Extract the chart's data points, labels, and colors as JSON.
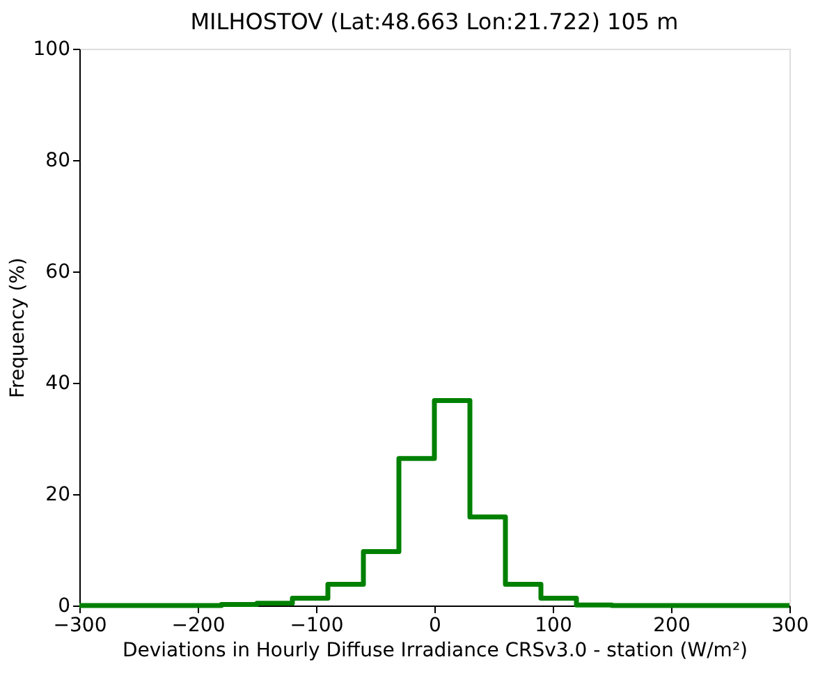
{
  "chart_data": {
    "type": "histogram",
    "title": "MILHOSTOV (Lat:48.663 Lon:21.722) 105 m",
    "xlabel": "Deviations in Hourly Diffuse Irradiance CRSv3.0 - station (W/m²)",
    "ylabel": "Frequency (%)",
    "bins": [
      -300,
      -270,
      -240,
      -210,
      -180,
      -150,
      -120,
      -90,
      -60,
      -30,
      0,
      30,
      60,
      90,
      120,
      150,
      180,
      210,
      240,
      270,
      300
    ],
    "values": [
      0,
      0,
      0,
      0,
      0.2,
      0.4,
      1.3,
      3.8,
      9.7,
      26.4,
      36.8,
      15.9,
      3.8,
      1.3,
      0.1,
      0,
      0,
      0,
      0,
      0
    ],
    "color": "#008000",
    "xlim": [
      -300,
      300
    ],
    "ylim": [
      0,
      100
    ],
    "xticks": [
      -300,
      -200,
      -100,
      0,
      100,
      200,
      300
    ],
    "yticks": [
      0,
      20,
      40,
      60,
      80,
      100
    ],
    "grid": false
  }
}
